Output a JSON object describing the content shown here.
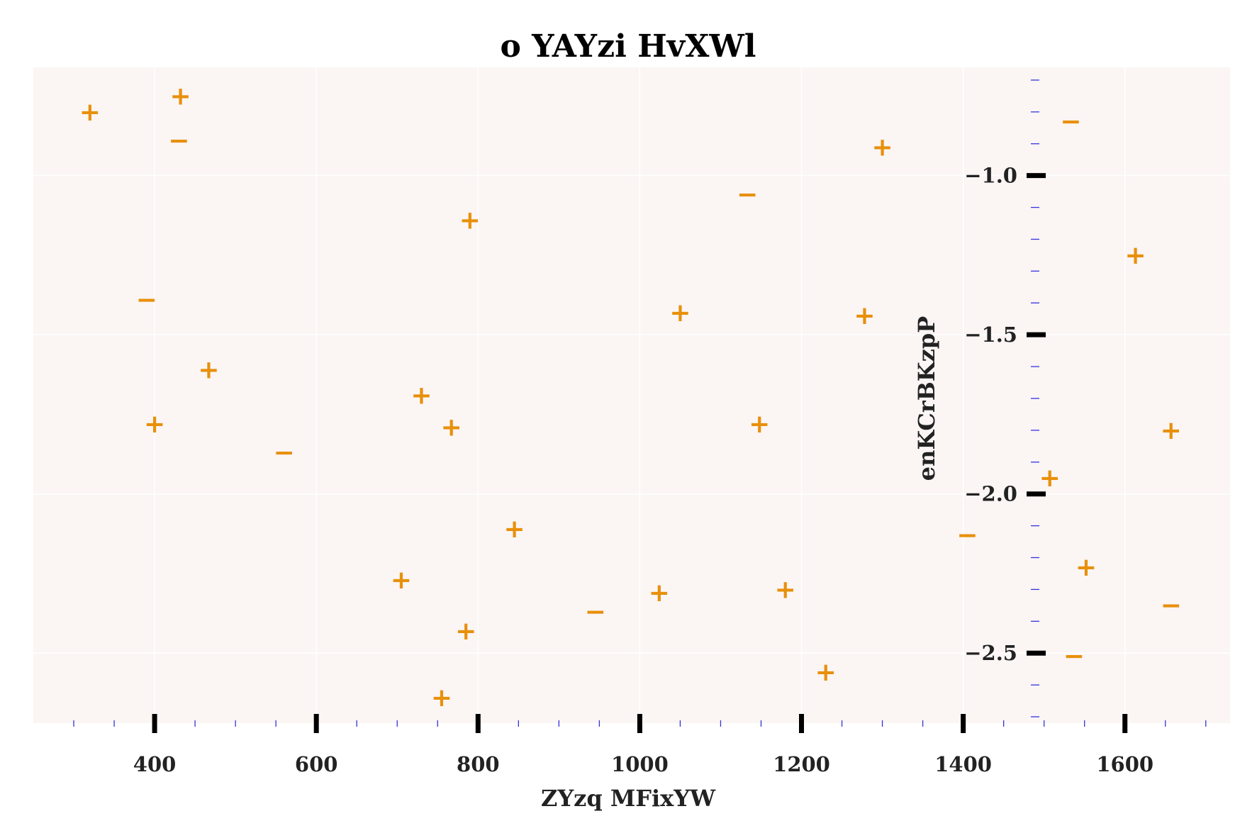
{
  "chart_data": {
    "type": "scatter",
    "title": "o  YAYzi HvXWl",
    "xlabel": "ZYzq  MFixYW",
    "ylabel": "enKCrBKzpP",
    "xlim": [
      250,
      1730
    ],
    "ylim": [
      -2.72,
      -0.66
    ],
    "x_ticks": [
      400,
      600,
      800,
      1000,
      1200,
      1400,
      1600
    ],
    "x_tick_labels": [
      "400",
      "600",
      "800",
      "1000",
      "1200",
      "1400",
      "1600"
    ],
    "y_ticks": [
      -1.0,
      -1.5,
      -2.0,
      -2.5
    ],
    "y_tick_labels": [
      "−1.0",
      "−1.5",
      "−2.0",
      "−2.5"
    ],
    "grid": true,
    "colors": {
      "marker": "#E8900A",
      "background": "#FBF5F4",
      "grid": "#FFFFFF",
      "major_tick": "#000000",
      "minor_tick": "#3333DD"
    },
    "points": [
      {
        "x": 320,
        "y": -0.8,
        "marker": "+"
      },
      {
        "x": 432,
        "y": -0.75,
        "marker": "+"
      },
      {
        "x": 430,
        "y": -0.89,
        "marker": "−"
      },
      {
        "x": 390,
        "y": -1.39,
        "marker": "−"
      },
      {
        "x": 467,
        "y": -1.61,
        "marker": "+"
      },
      {
        "x": 400,
        "y": -1.78,
        "marker": "+"
      },
      {
        "x": 560,
        "y": -1.87,
        "marker": "−"
      },
      {
        "x": 790,
        "y": -1.14,
        "marker": "+"
      },
      {
        "x": 730,
        "y": -1.69,
        "marker": "+"
      },
      {
        "x": 767,
        "y": -1.79,
        "marker": "+"
      },
      {
        "x": 845,
        "y": -2.11,
        "marker": "+"
      },
      {
        "x": 705,
        "y": -2.27,
        "marker": "+"
      },
      {
        "x": 785,
        "y": -2.43,
        "marker": "+"
      },
      {
        "x": 755,
        "y": -2.64,
        "marker": "+"
      },
      {
        "x": 945,
        "y": -2.37,
        "marker": "−"
      },
      {
        "x": 1024,
        "y": -2.31,
        "marker": "+"
      },
      {
        "x": 1050,
        "y": -1.43,
        "marker": "+"
      },
      {
        "x": 1133,
        "y": -1.06,
        "marker": "−"
      },
      {
        "x": 1148,
        "y": -1.78,
        "marker": "+"
      },
      {
        "x": 1180,
        "y": -2.3,
        "marker": "+"
      },
      {
        "x": 1230,
        "y": -2.56,
        "marker": "+"
      },
      {
        "x": 1278,
        "y": -1.44,
        "marker": "+"
      },
      {
        "x": 1300,
        "y": -0.91,
        "marker": "+"
      },
      {
        "x": 1405,
        "y": -2.13,
        "marker": "−"
      },
      {
        "x": 1533,
        "y": -0.83,
        "marker": "−"
      },
      {
        "x": 1613,
        "y": -1.25,
        "marker": "+"
      },
      {
        "x": 1507,
        "y": -1.95,
        "marker": "+"
      },
      {
        "x": 1552,
        "y": -2.23,
        "marker": "+"
      },
      {
        "x": 1537,
        "y": -2.51,
        "marker": "−"
      },
      {
        "x": 1657,
        "y": -1.8,
        "marker": "+"
      },
      {
        "x": 1657,
        "y": -2.35,
        "marker": "−"
      }
    ]
  }
}
